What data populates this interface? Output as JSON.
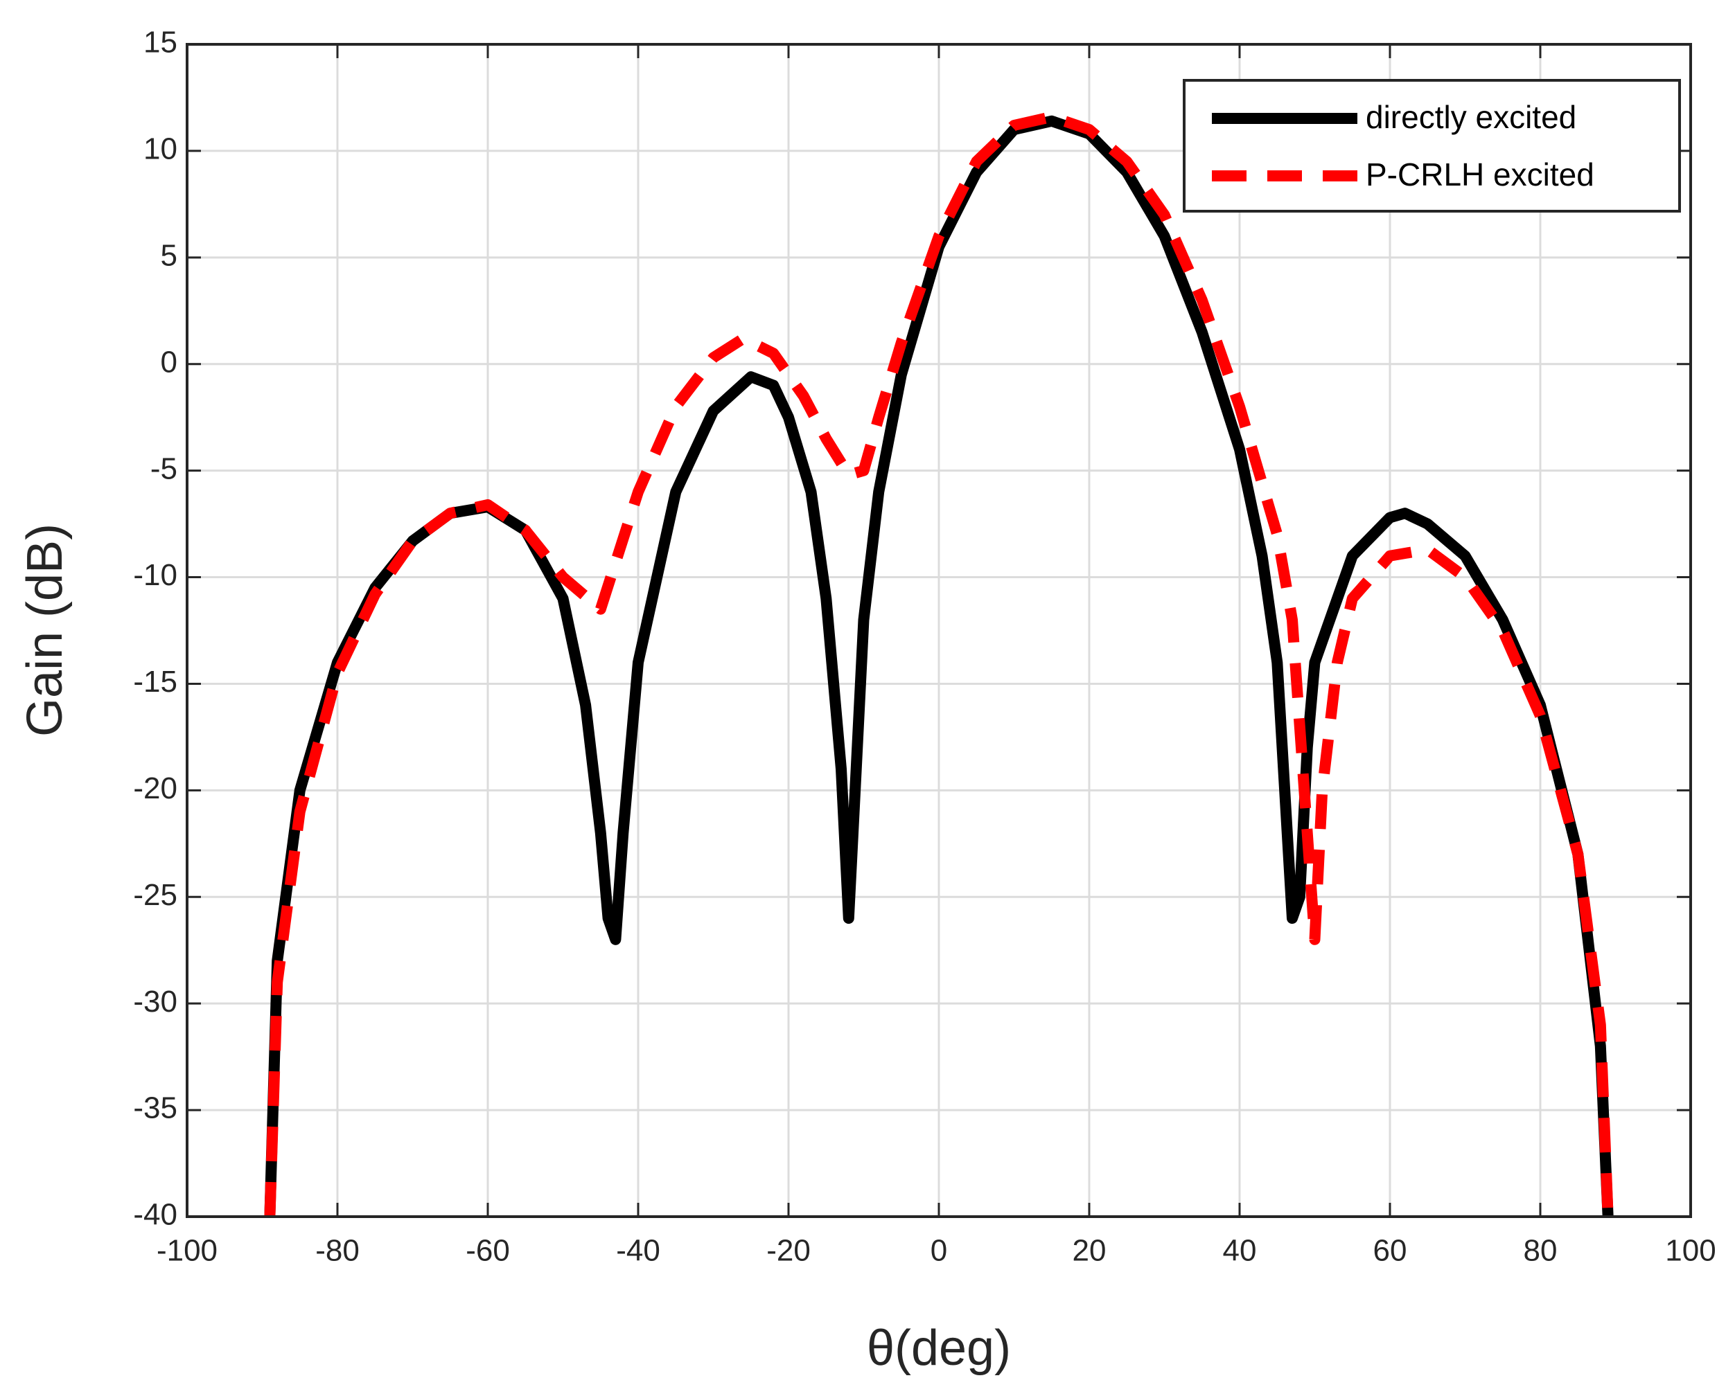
{
  "chart_data": {
    "type": "line",
    "xlabel": "θ(deg)",
    "ylabel": "Gain (dB)",
    "xlim": [
      -100,
      100
    ],
    "xticks": [
      -100,
      -80,
      -60,
      -40,
      -20,
      0,
      20,
      40,
      60,
      80,
      100
    ],
    "ylim": [
      -40,
      15
    ],
    "yticks": [
      -40,
      -35,
      -30,
      -25,
      -20,
      -15,
      -10,
      -5,
      0,
      5,
      10,
      15
    ],
    "grid": true,
    "legend": "upper right",
    "series": [
      {
        "name": "directly excited",
        "color": "#000000",
        "style": "solid",
        "x": [
          -89,
          -88,
          -85,
          -80,
          -75,
          -70,
          -65,
          -60,
          -55,
          -50,
          -47,
          -45,
          -44,
          -43,
          -42,
          -40,
          -35,
          -30,
          -25,
          -22,
          -20,
          -17,
          -15,
          -13,
          -12,
          -11,
          -10,
          -8,
          -5,
          0,
          5,
          10,
          15,
          20,
          25,
          30,
          35,
          40,
          43,
          45,
          47,
          48,
          49,
          50,
          55,
          60,
          62,
          65,
          70,
          75,
          80,
          85,
          88,
          89
        ],
        "values": [
          -40,
          -28,
          -20,
          -14,
          -10.5,
          -8.3,
          -7,
          -6.7,
          -7.8,
          -11,
          -16,
          -22,
          -26,
          -27,
          -22,
          -14,
          -6,
          -2.2,
          -0.6,
          -1,
          -2.5,
          -6,
          -11,
          -19,
          -26,
          -19,
          -12,
          -6,
          -0.5,
          5.5,
          9,
          11,
          11.4,
          10.8,
          9,
          6,
          1.5,
          -4,
          -9,
          -14,
          -26,
          -25,
          -18,
          -14,
          -9,
          -7.2,
          -7,
          -7.5,
          -9,
          -12,
          -16,
          -23,
          -32,
          -40
        ]
      },
      {
        "name": "P-CRLH excited",
        "color": "#ff0000",
        "style": "dashed",
        "x": [
          -89,
          -88,
          -85,
          -80,
          -75,
          -70,
          -65,
          -60,
          -55,
          -50,
          -45,
          -40,
          -35,
          -30,
          -26,
          -22,
          -18,
          -15,
          -12,
          -10,
          -8,
          -5,
          0,
          5,
          10,
          15,
          20,
          25,
          30,
          35,
          40,
          45,
          47,
          48,
          49,
          50,
          51,
          53,
          55,
          60,
          65,
          70,
          75,
          80,
          85,
          88,
          89
        ],
        "values": [
          -40,
          -29,
          -21,
          -14.5,
          -10.8,
          -8.3,
          -7,
          -6.6,
          -7.8,
          -10,
          -11.5,
          -6,
          -2,
          0.3,
          1.2,
          0.5,
          -1.5,
          -3.5,
          -5.2,
          -5,
          -2.5,
          1,
          6,
          9.5,
          11.2,
          11.6,
          11,
          9.5,
          7,
          3,
          -2,
          -8,
          -12,
          -17,
          -22,
          -27,
          -20,
          -14,
          -11,
          -9,
          -8.7,
          -10,
          -12.5,
          -16.5,
          -23,
          -31,
          -40
        ]
      }
    ]
  }
}
